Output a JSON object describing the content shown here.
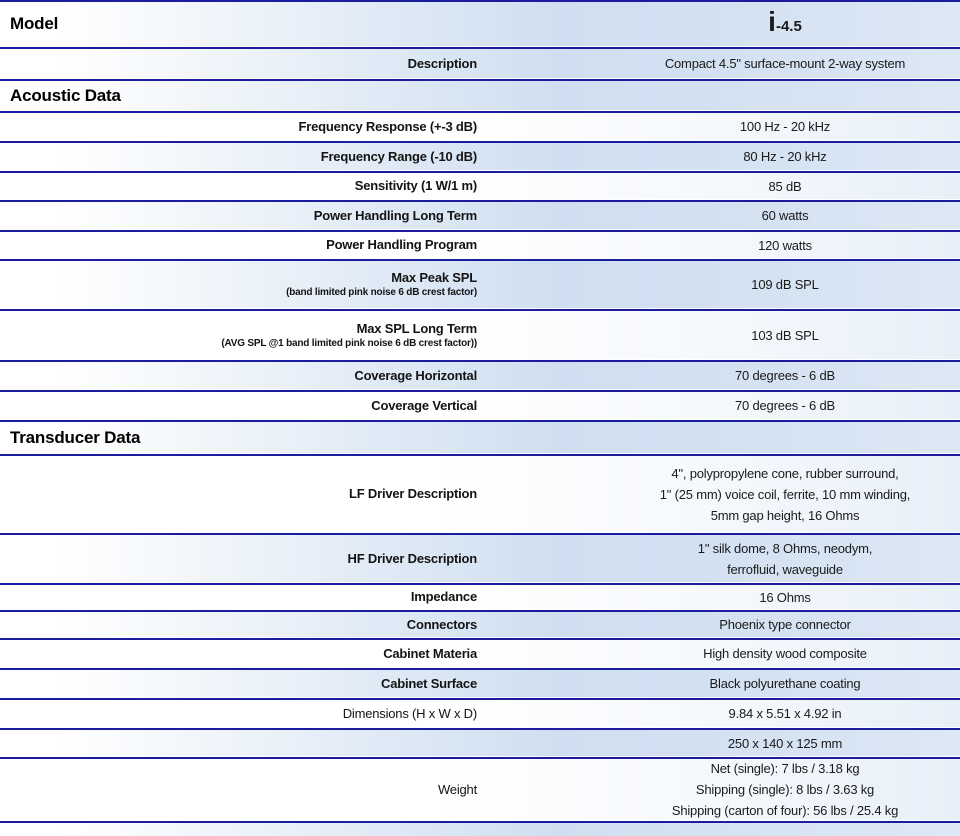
{
  "colors": {
    "separator_navy": "#1c1c9e",
    "row_blue": "#cfdff1",
    "row_blue_light": "#dde8f5",
    "text": "#141414"
  },
  "rows": [
    {
      "type": "header",
      "h": 44,
      "label": "Model",
      "logo": {
        "prefix": "i",
        "suffix": "-4.5"
      }
    },
    {
      "type": "spec",
      "shade": "blue",
      "h": 29,
      "label": "Description",
      "values": [
        "Compact 4.5\" surface-mount 2-way system"
      ]
    },
    {
      "type": "header",
      "h": 29,
      "label": "Acoustic Data"
    },
    {
      "type": "spec",
      "shade": "white",
      "h": 27,
      "label": "Frequency Response  (+-3 dB)",
      "values": [
        "100 Hz - 20 kHz"
      ]
    },
    {
      "type": "spec",
      "shade": "blue",
      "h": 27,
      "label": "Frequency Range (-10 dB)",
      "values": [
        "80 Hz - 20 kHz"
      ]
    },
    {
      "type": "spec",
      "shade": "white",
      "h": 26,
      "label": "Sensitivity (1 W/1 m)",
      "values": [
        "85 dB"
      ]
    },
    {
      "type": "spec",
      "shade": "blue",
      "h": 27,
      "label": "Power Handling Long Term",
      "values": [
        "60 watts"
      ]
    },
    {
      "type": "spec",
      "shade": "white",
      "h": 26,
      "label": "Power Handling Program",
      "values": [
        "120 watts"
      ]
    },
    {
      "type": "spec",
      "shade": "blue",
      "h": 47,
      "label": "Max Peak SPL",
      "sublabel": "(band limited pink noise 6 dB crest factor)",
      "values": [
        "109 dB SPL"
      ]
    },
    {
      "type": "spec",
      "shade": "white",
      "h": 48,
      "label": "Max SPL Long Term",
      "sublabel": "(AVG SPL @1 band limited pink noise 6 dB crest factor))",
      "values": [
        "103 dB SPL"
      ]
    },
    {
      "type": "spec",
      "shade": "blue",
      "h": 27,
      "label": "Coverage Horizontal",
      "values": [
        "70 degrees - 6 dB"
      ]
    },
    {
      "type": "spec",
      "shade": "white",
      "h": 27,
      "label": "Coverage Vertical",
      "values": [
        "70 degrees - 6 dB"
      ]
    },
    {
      "type": "header",
      "h": 31,
      "label": "Transducer Data"
    },
    {
      "type": "spec",
      "shade": "white",
      "h": 76,
      "label": "LF Driver Description",
      "values": [
        "4\", polypropylene cone, rubber surround,",
        "1\" (25 mm) voice coil,  ferrite, 10 mm winding,",
        "5mm gap height, 16 Ohms"
      ]
    },
    {
      "type": "spec",
      "shade": "blue",
      "h": 47,
      "label": "HF Driver Description",
      "values": [
        "1\" silk dome, 8 Ohms, neodym,",
        "ferrofluid, waveguide"
      ]
    },
    {
      "type": "spec",
      "shade": "white",
      "h": 24,
      "label": "Impedance",
      "values": [
        "16 Ohms"
      ]
    },
    {
      "type": "spec",
      "shade": "blue",
      "h": 25,
      "label": "Connectors",
      "values": [
        "Phoenix type connector"
      ]
    },
    {
      "type": "spec",
      "shade": "white",
      "h": 27,
      "label": "Cabinet Materia",
      "values": [
        "High density wood composite"
      ]
    },
    {
      "type": "spec",
      "shade": "blue",
      "h": 27,
      "label": "Cabinet Surface",
      "values": [
        "Black polyurethane coating"
      ]
    },
    {
      "type": "spec",
      "shade": "white",
      "h": 27,
      "label": "Dimensions (H x W x D)",
      "label_weight": "normal",
      "values": [
        "9.84 x 5.51 x 4.92 in"
      ]
    },
    {
      "type": "spec",
      "shade": "blue",
      "h": 26,
      "label": "",
      "values": [
        "250 x 140 x 125 mm"
      ]
    },
    {
      "type": "spec",
      "shade": "white",
      "h": 61,
      "label": "Weight",
      "label_weight": "normal",
      "values": [
        "Net (single): 7 lbs / 3.18 kg",
        "Shipping (single): 8 lbs / 3.63 kg",
        "Shipping (carton of four): 56 lbs / 25.4 kg"
      ]
    }
  ]
}
